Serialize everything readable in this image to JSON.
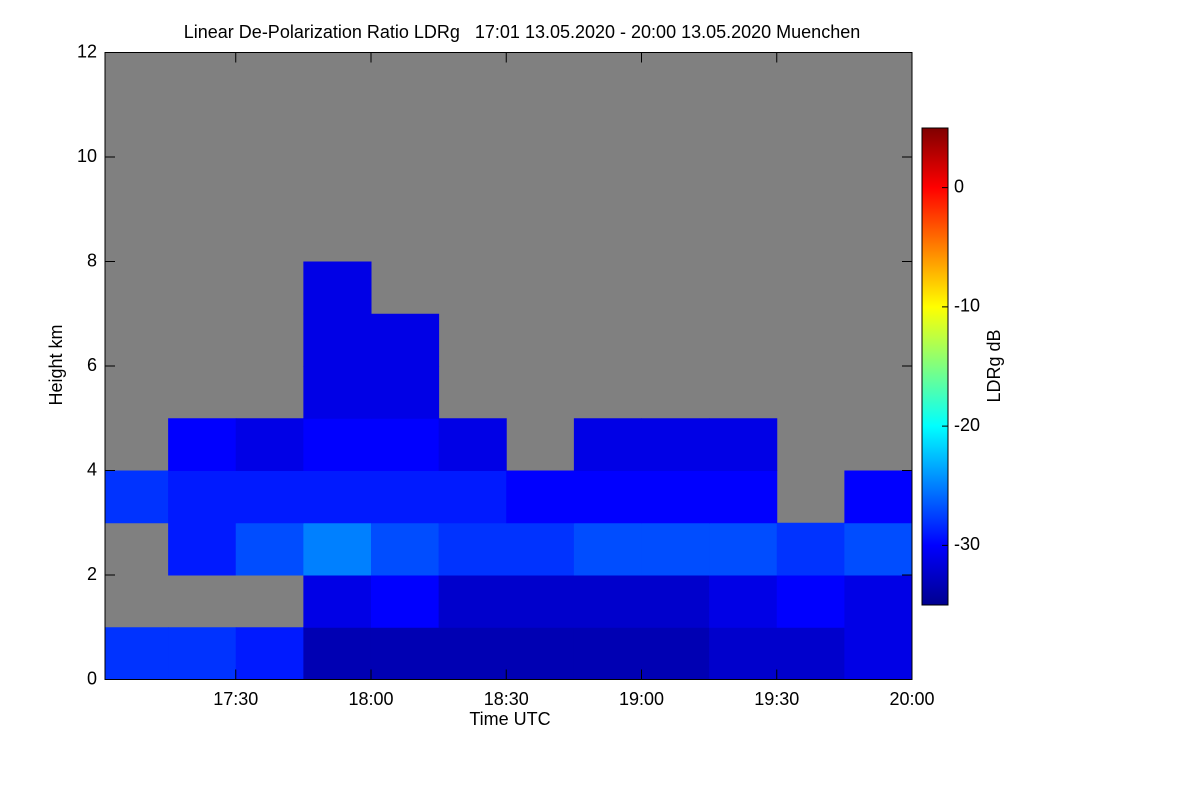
{
  "chart_data": {
    "type": "heatmap",
    "title": "Linear De-Polarization Ratio LDRg   17:01 13.05.2020 - 20:00 13.05.2020 Muenchen",
    "x_label": "Time UTC",
    "y_label": "Height km",
    "colorbar_label": "LDRg dB",
    "background": "#808080",
    "xlim": [
      "17:01",
      "20:00"
    ],
    "xticks": [
      "17:30",
      "18:00",
      "18:30",
      "19:00",
      "19:30",
      "20:00"
    ],
    "ylim": [
      0,
      12
    ],
    "yticks": [
      0,
      2,
      4,
      6,
      8,
      10,
      12
    ],
    "zlim": [
      -35,
      5
    ],
    "zticks": [
      0,
      -10,
      -20,
      -30
    ],
    "xbins": [
      "17:00",
      "17:15",
      "17:30",
      "17:45",
      "18:00",
      "18:15",
      "18:30",
      "18:45",
      "19:00",
      "19:15",
      "19:30",
      "19:45",
      "20:00"
    ],
    "ybins": [
      0,
      1,
      2,
      3,
      4,
      5,
      6,
      7,
      8,
      9,
      10,
      11,
      12
    ],
    "values": [
      [
        -28,
        -28,
        -29,
        -33,
        -33,
        -33,
        -33,
        -33,
        -33,
        -32,
        -32,
        -31
      ],
      [
        null,
        null,
        null,
        -31,
        -30,
        -32,
        -32,
        -32,
        -32,
        -31,
        -30,
        -31
      ],
      [
        null,
        -29,
        -27,
        -25,
        -27,
        -28,
        -28,
        -27,
        -27,
        -27,
        -28,
        -27
      ],
      [
        -28,
        -29,
        -29,
        -29,
        -29,
        -29,
        -30,
        -30,
        -30,
        -30,
        null,
        -30
      ],
      [
        null,
        -30,
        -31,
        -30,
        -30,
        -31,
        null,
        -31,
        -31,
        -31,
        null,
        null
      ],
      [
        null,
        null,
        null,
        -31,
        -31,
        null,
        null,
        null,
        null,
        null,
        null,
        null
      ],
      [
        null,
        null,
        null,
        -31,
        -31,
        null,
        null,
        null,
        null,
        null,
        null,
        null
      ],
      [
        null,
        null,
        null,
        -31,
        null,
        null,
        null,
        null,
        null,
        null,
        null,
        null
      ],
      [
        null,
        null,
        null,
        null,
        null,
        null,
        null,
        null,
        null,
        null,
        null,
        null
      ],
      [
        null,
        null,
        null,
        null,
        null,
        null,
        null,
        null,
        null,
        null,
        null,
        null
      ],
      [
        null,
        null,
        null,
        null,
        null,
        null,
        null,
        null,
        null,
        null,
        null,
        null
      ],
      [
        null,
        null,
        null,
        null,
        null,
        null,
        null,
        null,
        null,
        null,
        null,
        null
      ]
    ]
  }
}
